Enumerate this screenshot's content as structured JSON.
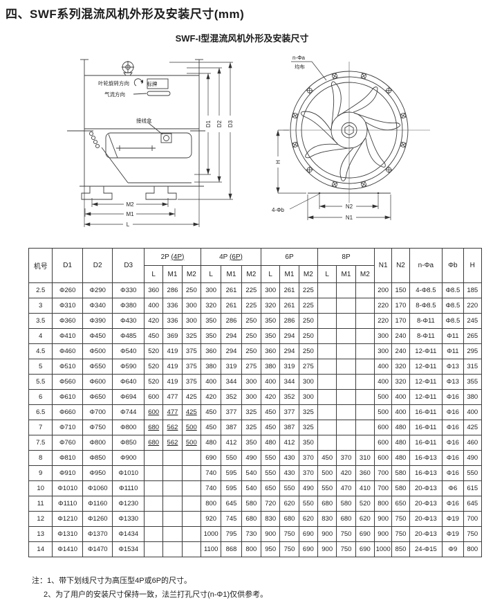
{
  "page": {
    "title": "四、SWF系列混流风机外形及安装尺寸(mm)",
    "subtitle": "SWF-I型混流风机外形及安装尺寸"
  },
  "side_view": {
    "labels": {
      "rotation_dir": "叶轮旋转方向",
      "nameplate": "标牌",
      "airflow_dir": "气流方向",
      "junction_box": "接线盒"
    },
    "dims": {
      "d1": "D1",
      "d2": "D2",
      "d3": "D3",
      "m1": "M1",
      "m2": "M2",
      "l": "L"
    }
  },
  "front_view": {
    "labels": {
      "flange_holes": "n-Φa",
      "evenly_spaced": "均布",
      "base_holes": "4-Φb"
    },
    "dims": {
      "h": "H",
      "n1": "N1",
      "n2": "N2"
    }
  },
  "table": {
    "headers": {
      "model": "机号",
      "d1": "D1",
      "d2": "D2",
      "d3": "D3",
      "groups": [
        {
          "main": "2P",
          "paren": "(4P)"
        },
        {
          "main": "4P",
          "paren": "(6P)"
        },
        {
          "main": "6P",
          "paren": ""
        },
        {
          "main": "8P",
          "paren": ""
        }
      ],
      "sub": [
        "L",
        "M1",
        "M2"
      ],
      "n1": "N1",
      "n2": "N2",
      "na": "n-Φa",
      "phib": "Φb",
      "h": "H"
    },
    "rows": [
      [
        "2.5",
        "Φ260",
        "Φ290",
        "Φ330",
        "360",
        "286",
        "250",
        "300",
        "261",
        "225",
        "300",
        "261",
        "225",
        "",
        "",
        "",
        "200",
        "150",
        "4-Φ8.5",
        "Φ8.5",
        "185"
      ],
      [
        "3",
        "Φ310",
        "Φ340",
        "Φ380",
        "400",
        "336",
        "300",
        "320",
        "261",
        "225",
        "320",
        "261",
        "225",
        "",
        "",
        "",
        "220",
        "170",
        "8-Φ8.5",
        "Φ8.5",
        "220"
      ],
      [
        "3.5",
        "Φ360",
        "Φ390",
        "Φ430",
        "420",
        "336",
        "300",
        "350",
        "286",
        "250",
        "350",
        "286",
        "250",
        "",
        "",
        "",
        "220",
        "170",
        "8-Φ11",
        "Φ8.5",
        "245"
      ],
      [
        "4",
        "Φ410",
        "Φ450",
        "Φ485",
        "450",
        "369",
        "325",
        "350",
        "294",
        "250",
        "350",
        "294",
        "250",
        "",
        "",
        "",
        "300",
        "240",
        "8-Φ11",
        "Φ11",
        "265"
      ],
      [
        "4.5",
        "Φ460",
        "Φ500",
        "Φ540",
        "520",
        "419",
        "375",
        "360",
        "294",
        "250",
        "360",
        "294",
        "250",
        "",
        "",
        "",
        "300",
        "240",
        "12-Φ11",
        "Φ11",
        "295"
      ],
      [
        "5",
        "Φ510",
        "Φ550",
        "Φ590",
        "520",
        "419",
        "375",
        "380",
        "319",
        "275",
        "380",
        "319",
        "275",
        "",
        "",
        "",
        "400",
        "320",
        "12-Φ11",
        "Φ13",
        "315"
      ],
      [
        "5.5",
        "Φ560",
        "Φ600",
        "Φ640",
        "520",
        "419",
        "375",
        "400",
        "344",
        "300",
        "400",
        "344",
        "300",
        "",
        "",
        "",
        "400",
        "320",
        "12-Φ11",
        "Φ13",
        "355"
      ],
      [
        "6",
        "Φ610",
        "Φ650",
        "Φ694",
        "600",
        "477",
        "425",
        "420",
        "352",
        "300",
        "420",
        "352",
        "300",
        "",
        "",
        "",
        "500",
        "400",
        "12-Φ11",
        "Φ16",
        "380"
      ],
      [
        "6.5",
        "Φ660",
        "Φ700",
        "Φ744",
        "600",
        "477",
        "425",
        "450",
        "377",
        "325",
        "450",
        "377",
        "325",
        "",
        "",
        "",
        "500",
        "400",
        "16-Φ11",
        "Φ16",
        "400"
      ],
      [
        "7",
        "Φ710",
        "Φ750",
        "Φ800",
        "680",
        "562",
        "500",
        "450",
        "387",
        "325",
        "450",
        "387",
        "325",
        "",
        "",
        "",
        "600",
        "480",
        "16-Φ11",
        "Φ16",
        "425"
      ],
      [
        "7.5",
        "Φ760",
        "Φ800",
        "Φ850",
        "680",
        "562",
        "500",
        "480",
        "412",
        "350",
        "480",
        "412",
        "350",
        "",
        "",
        "",
        "600",
        "480",
        "16-Φ11",
        "Φ16",
        "460"
      ],
      [
        "8",
        "Φ810",
        "Φ850",
        "Φ900",
        "",
        "",
        "",
        "690",
        "550",
        "490",
        "550",
        "430",
        "370",
        "450",
        "370",
        "310",
        "600",
        "480",
        "16-Φ13",
        "Φ16",
        "490"
      ],
      [
        "9",
        "Φ910",
        "Φ950",
        "Φ1010",
        "",
        "",
        "",
        "740",
        "595",
        "540",
        "550",
        "430",
        "370",
        "500",
        "420",
        "360",
        "700",
        "580",
        "16-Φ13",
        "Φ16",
        "550"
      ],
      [
        "10",
        "Φ1010",
        "Φ1060",
        "Φ1110",
        "",
        "",
        "",
        "740",
        "595",
        "540",
        "650",
        "550",
        "490",
        "550",
        "470",
        "410",
        "700",
        "580",
        "20-Φ13",
        "Φ6",
        "615"
      ],
      [
        "11",
        "Φ1110",
        "Φ1160",
        "Φ1230",
        "",
        "",
        "",
        "800",
        "645",
        "580",
        "720",
        "620",
        "550",
        "680",
        "580",
        "520",
        "800",
        "650",
        "20-Φ13",
        "Φ16",
        "645"
      ],
      [
        "12",
        "Φ1210",
        "Φ1260",
        "Φ1330",
        "",
        "",
        "",
        "920",
        "745",
        "680",
        "830",
        "680",
        "620",
        "830",
        "680",
        "620",
        "900",
        "750",
        "20-Φ13",
        "Φ19",
        "700"
      ],
      [
        "13",
        "Φ1310",
        "Φ1370",
        "Φ1434",
        "",
        "",
        "",
        "1000",
        "795",
        "730",
        "900",
        "750",
        "690",
        "900",
        "750",
        "690",
        "900",
        "750",
        "20-Φ13",
        "Φ19",
        "750"
      ],
      [
        "14",
        "Φ1410",
        "Φ1470",
        "Φ1534",
        "",
        "",
        "",
        "1100",
        "868",
        "800",
        "950",
        "750",
        "690",
        "900",
        "750",
        "690",
        "1000",
        "850",
        "24-Φ15",
        "Φ9",
        "800"
      ]
    ],
    "underlined_cells": {
      "8": [
        4,
        5,
        6
      ],
      "9": [
        4,
        5,
        6
      ],
      "10": [
        4,
        5,
        6
      ]
    }
  },
  "notes": {
    "line1": "注：1、带下划线尺寸为高压型4P或6P的尺寸。",
    "line2": "2、为了用户的安装尺寸保持一致，法兰打孔尺寸(n-Φ1)仅供参考。"
  }
}
